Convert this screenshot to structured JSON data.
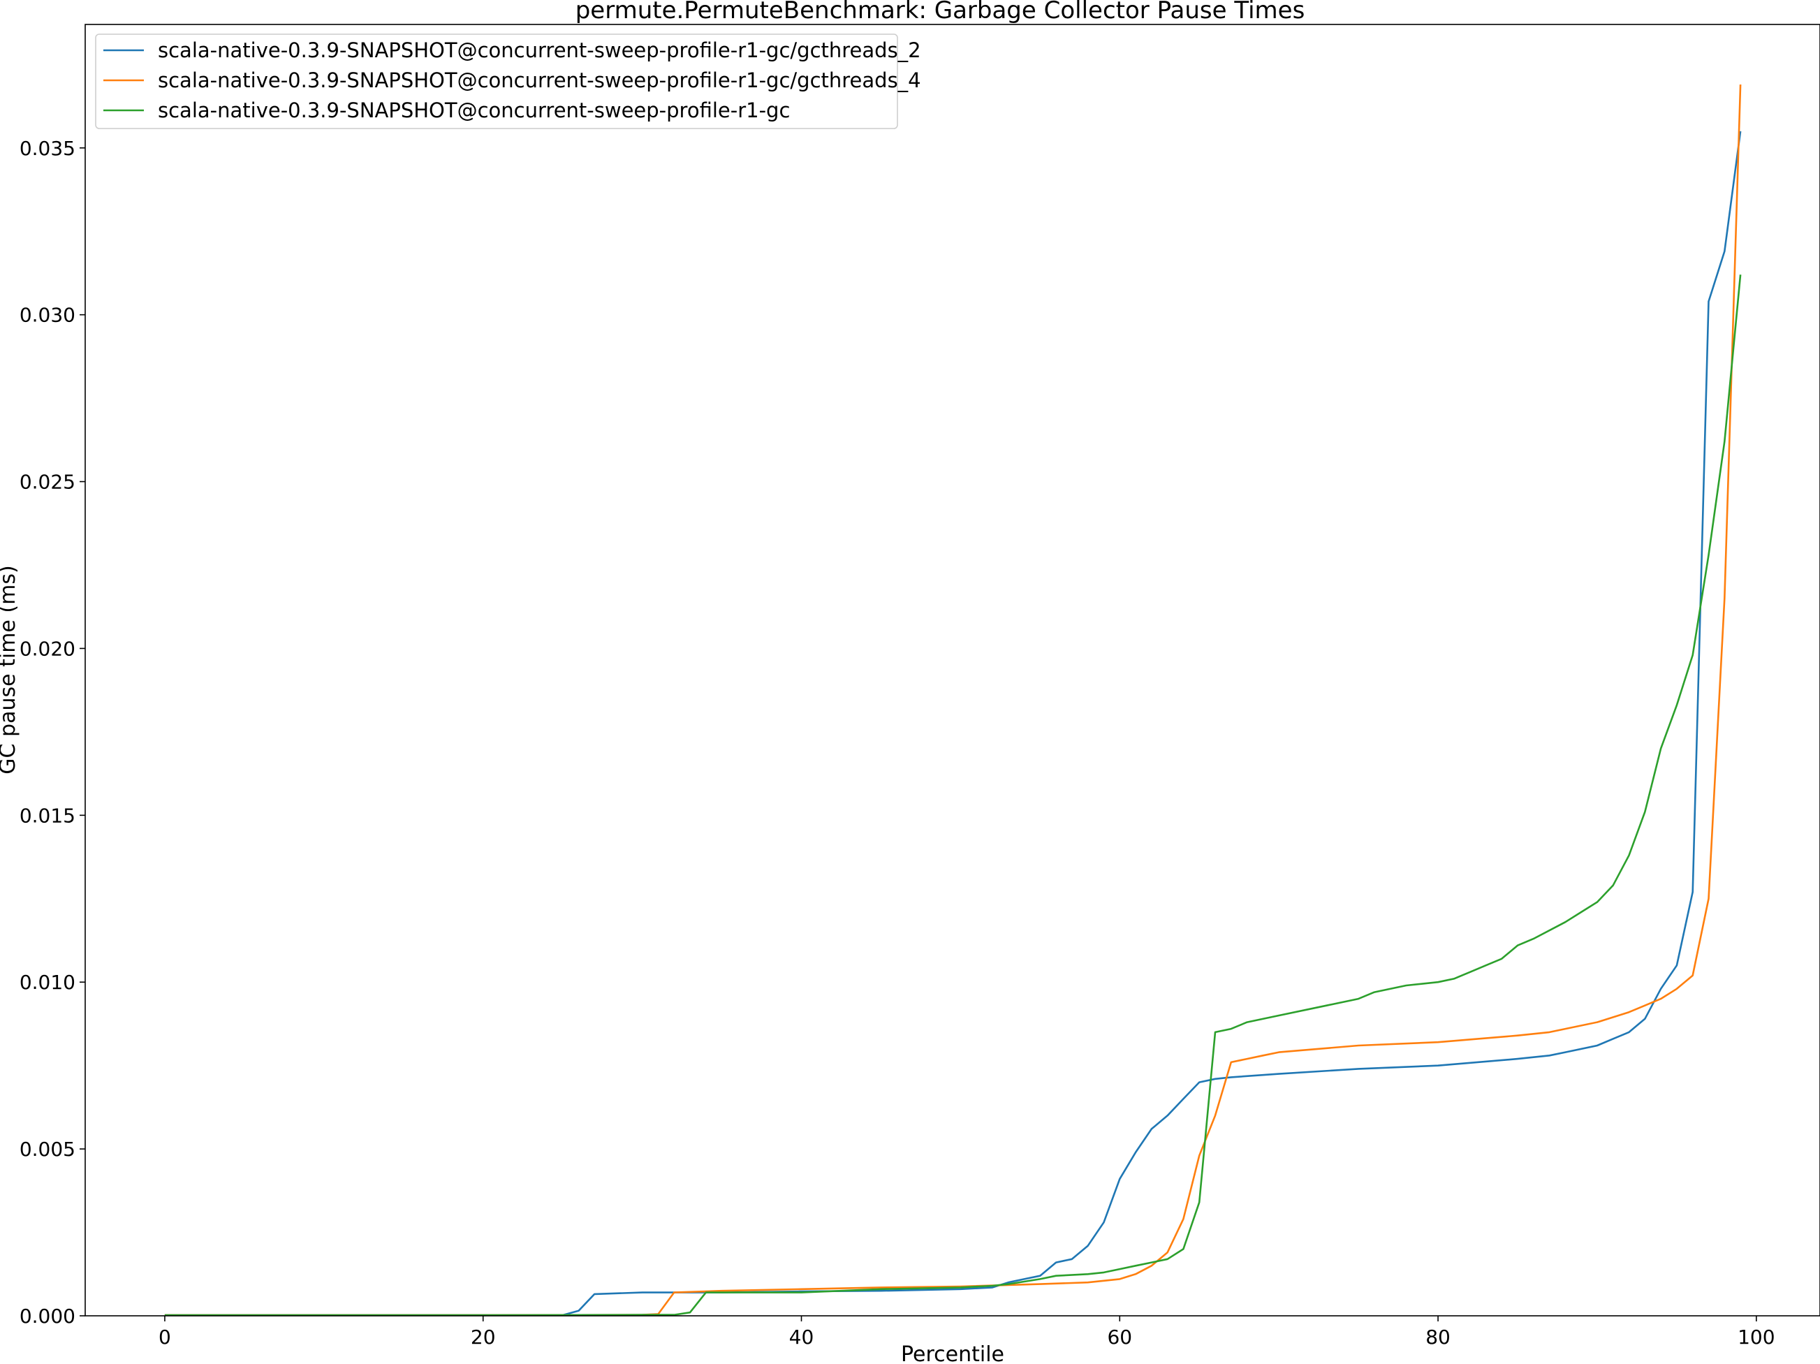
{
  "chart_data": {
    "type": "line",
    "title": "permute.PermuteBenchmark: Garbage Collector Pause Times",
    "xlabel": "Percentile",
    "ylabel": "GC pause time (ms)",
    "xlim": [
      -5,
      104
    ],
    "ylim": [
      0,
      0.0387
    ],
    "xticks": [
      0,
      20,
      40,
      60,
      80,
      100
    ],
    "xtick_labels": [
      "0",
      "20",
      "40",
      "60",
      "80",
      "100"
    ],
    "yticks": [
      0,
      0.005,
      0.01,
      0.015,
      0.02,
      0.025,
      0.03,
      0.035
    ],
    "ytick_labels": [
      "0.000",
      "0.005",
      "0.010",
      "0.015",
      "0.020",
      "0.025",
      "0.030",
      "0.035"
    ],
    "grid": false,
    "legend_position": "top-left",
    "series": [
      {
        "name": "scala-native-0.3.9-SNAPSHOT@concurrent-sweep-profile-r1-gc/gcthreads_2",
        "color": "#1f77b4",
        "points": [
          [
            0,
            2e-05
          ],
          [
            10,
            2e-05
          ],
          [
            20,
            2e-05
          ],
          [
            25,
            2e-05
          ],
          [
            26,
            0.00015
          ],
          [
            27,
            0.00065
          ],
          [
            30,
            0.0007
          ],
          [
            35,
            0.0007
          ],
          [
            40,
            0.00073
          ],
          [
            45,
            0.00075
          ],
          [
            50,
            0.0008
          ],
          [
            52,
            0.00085
          ],
          [
            53,
            0.001
          ],
          [
            54,
            0.0011
          ],
          [
            55,
            0.0012
          ],
          [
            56,
            0.0016
          ],
          [
            57,
            0.0017
          ],
          [
            58,
            0.0021
          ],
          [
            59,
            0.0028
          ],
          [
            60,
            0.0041
          ],
          [
            61,
            0.0049
          ],
          [
            62,
            0.0056
          ],
          [
            63,
            0.006
          ],
          [
            64,
            0.0065
          ],
          [
            65,
            0.007
          ],
          [
            66,
            0.0071
          ],
          [
            67,
            0.00715
          ],
          [
            70,
            0.00725
          ],
          [
            75,
            0.0074
          ],
          [
            80,
            0.0075
          ],
          [
            85,
            0.0077
          ],
          [
            87,
            0.0078
          ],
          [
            88,
            0.0079
          ],
          [
            90,
            0.0081
          ],
          [
            91,
            0.0083
          ],
          [
            92,
            0.0085
          ],
          [
            93,
            0.0089
          ],
          [
            94,
            0.0098
          ],
          [
            95,
            0.0105
          ],
          [
            96,
            0.0127
          ],
          [
            97,
            0.0304
          ],
          [
            98,
            0.0319
          ],
          [
            99,
            0.0355
          ]
        ]
      },
      {
        "name": "scala-native-0.3.9-SNAPSHOT@concurrent-sweep-profile-r1-gc/gcthreads_4",
        "color": "#ff7f0e",
        "points": [
          [
            0,
            2e-05
          ],
          [
            10,
            2e-05
          ],
          [
            20,
            2e-05
          ],
          [
            30,
            3e-05
          ],
          [
            31,
            5e-05
          ],
          [
            32,
            0.0007
          ],
          [
            35,
            0.00075
          ],
          [
            40,
            0.0008
          ],
          [
            45,
            0.00085
          ],
          [
            50,
            0.00088
          ],
          [
            55,
            0.00095
          ],
          [
            58,
            0.001
          ],
          [
            60,
            0.0011
          ],
          [
            61,
            0.00125
          ],
          [
            62,
            0.0015
          ],
          [
            63,
            0.0019
          ],
          [
            64,
            0.0029
          ],
          [
            65,
            0.0048
          ],
          [
            66,
            0.006
          ],
          [
            67,
            0.0076
          ],
          [
            68,
            0.0077
          ],
          [
            69,
            0.0078
          ],
          [
            70,
            0.0079
          ],
          [
            75,
            0.0081
          ],
          [
            80,
            0.0082
          ],
          [
            85,
            0.0084
          ],
          [
            87,
            0.0085
          ],
          [
            88,
            0.0086
          ],
          [
            90,
            0.0088
          ],
          [
            92,
            0.0091
          ],
          [
            93,
            0.0093
          ],
          [
            94,
            0.0095
          ],
          [
            95,
            0.0098
          ],
          [
            96,
            0.0102
          ],
          [
            97,
            0.0125
          ],
          [
            98,
            0.0215
          ],
          [
            99,
            0.0369
          ]
        ]
      },
      {
        "name": "scala-native-0.3.9-SNAPSHOT@concurrent-sweep-profile-r1-gc",
        "color": "#2ca02c",
        "points": [
          [
            0,
            2e-05
          ],
          [
            10,
            2e-05
          ],
          [
            20,
            2e-05
          ],
          [
            30,
            3e-05
          ],
          [
            32,
            3e-05
          ],
          [
            33,
            0.0001
          ],
          [
            34,
            0.0007
          ],
          [
            40,
            0.0007
          ],
          [
            45,
            0.0008
          ],
          [
            50,
            0.00085
          ],
          [
            52,
            0.0009
          ],
          [
            53,
            0.00095
          ],
          [
            55,
            0.0011
          ],
          [
            56,
            0.0012
          ],
          [
            58,
            0.00125
          ],
          [
            59,
            0.0013
          ],
          [
            60,
            0.0014
          ],
          [
            61,
            0.0015
          ],
          [
            62,
            0.0016
          ],
          [
            63,
            0.0017
          ],
          [
            64,
            0.002
          ],
          [
            65,
            0.0034
          ],
          [
            66,
            0.0085
          ],
          [
            67,
            0.0086
          ],
          [
            68,
            0.0088
          ],
          [
            70,
            0.009
          ],
          [
            73,
            0.0093
          ],
          [
            75,
            0.0095
          ],
          [
            76,
            0.0097
          ],
          [
            78,
            0.0099
          ],
          [
            80,
            0.01
          ],
          [
            81,
            0.0101
          ],
          [
            82,
            0.0103
          ],
          [
            83,
            0.0105
          ],
          [
            84,
            0.0107
          ],
          [
            85,
            0.0111
          ],
          [
            86,
            0.0113
          ],
          [
            88,
            0.0118
          ],
          [
            89,
            0.0121
          ],
          [
            90,
            0.0124
          ],
          [
            91,
            0.0129
          ],
          [
            92,
            0.0138
          ],
          [
            93,
            0.0151
          ],
          [
            94,
            0.017
          ],
          [
            95,
            0.0183
          ],
          [
            96,
            0.0198
          ],
          [
            97,
            0.0228
          ],
          [
            98,
            0.0262
          ],
          [
            99,
            0.0312
          ]
        ]
      }
    ]
  }
}
